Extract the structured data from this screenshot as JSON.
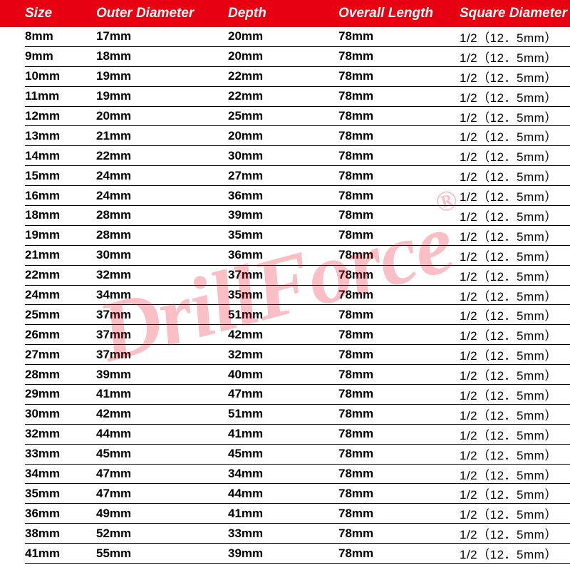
{
  "watermark": {
    "text": "DrillForce",
    "reg": "®",
    "color": "rgba(230,0,18,0.25)"
  },
  "table": {
    "header_bg": "#e60012",
    "header_fg": "#ffffff",
    "columns": [
      {
        "key": "size",
        "label": "Size"
      },
      {
        "key": "outer",
        "label": "Outer Diameter"
      },
      {
        "key": "depth",
        "label": "Depth"
      },
      {
        "key": "length",
        "label": "Overall Length"
      },
      {
        "key": "square",
        "label": "Square Diameter"
      }
    ],
    "rows": [
      {
        "size": "8mm",
        "outer": "17mm",
        "depth": "20mm",
        "length": "78mm",
        "square": "1/2（12．5mm）"
      },
      {
        "size": "9mm",
        "outer": "18mm",
        "depth": "20mm",
        "length": "78mm",
        "square": "1/2（12．5mm）"
      },
      {
        "size": "10mm",
        "outer": "19mm",
        "depth": "22mm",
        "length": "78mm",
        "square": "1/2（12．5mm）"
      },
      {
        "size": "11mm",
        "outer": "19mm",
        "depth": "22mm",
        "length": "78mm",
        "square": "1/2（12．5mm）"
      },
      {
        "size": "12mm",
        "outer": "20mm",
        "depth": "25mm",
        "length": "78mm",
        "square": "1/2（12．5mm）"
      },
      {
        "size": "13mm",
        "outer": "21mm",
        "depth": "20mm",
        "length": "78mm",
        "square": "1/2（12．5mm）"
      },
      {
        "size": "14mm",
        "outer": "22mm",
        "depth": "30mm",
        "length": "78mm",
        "square": "1/2（12．5mm）"
      },
      {
        "size": "15mm",
        "outer": "24mm",
        "depth": "27mm",
        "length": "78mm",
        "square": "1/2（12．5mm）"
      },
      {
        "size": "16mm",
        "outer": "24mm",
        "depth": "36mm",
        "length": "78mm",
        "square": "1/2（12．5mm）"
      },
      {
        "size": "18mm",
        "outer": "28mm",
        "depth": "39mm",
        "length": "78mm",
        "square": "1/2（12．5mm）"
      },
      {
        "size": "19mm",
        "outer": "28mm",
        "depth": "35mm",
        "length": "78mm",
        "square": "1/2（12．5mm）"
      },
      {
        "size": "21mm",
        "outer": "30mm",
        "depth": "36mm",
        "length": "78mm",
        "square": "1/2（12．5mm）"
      },
      {
        "size": "22mm",
        "outer": "32mm",
        "depth": "37mm",
        "length": "78mm",
        "square": "1/2（12．5mm）"
      },
      {
        "size": "24mm",
        "outer": "34mm",
        "depth": "35mm",
        "length": "78mm",
        "square": "1/2（12．5mm）"
      },
      {
        "size": "25mm",
        "outer": "37mm",
        "depth": "51mm",
        "length": "78mm",
        "square": "1/2（12．5mm）"
      },
      {
        "size": "26mm",
        "outer": "37mm",
        "depth": "42mm",
        "length": "78mm",
        "square": "1/2（12．5mm）"
      },
      {
        "size": "27mm",
        "outer": "37mm",
        "depth": "32mm",
        "length": "78mm",
        "square": "1/2（12．5mm）"
      },
      {
        "size": "28mm",
        "outer": "39mm",
        "depth": "40mm",
        "length": "78mm",
        "square": "1/2（12．5mm）"
      },
      {
        "size": "29mm",
        "outer": "41mm",
        "depth": "47mm",
        "length": "78mm",
        "square": "1/2（12．5mm）"
      },
      {
        "size": "30mm",
        "outer": "42mm",
        "depth": "51mm",
        "length": "78mm",
        "square": "1/2（12．5mm）"
      },
      {
        "size": "32mm",
        "outer": "44mm",
        "depth": "41mm",
        "length": "78mm",
        "square": "1/2（12．5mm）"
      },
      {
        "size": "33mm",
        "outer": "45mm",
        "depth": "45mm",
        "length": "78mm",
        "square": "1/2（12．5mm）"
      },
      {
        "size": "34mm",
        "outer": "47mm",
        "depth": "34mm",
        "length": "78mm",
        "square": "1/2（12．5mm）"
      },
      {
        "size": "35mm",
        "outer": "47mm",
        "depth": "44mm",
        "length": "78mm",
        "square": "1/2（12．5mm）"
      },
      {
        "size": "36mm",
        "outer": "49mm",
        "depth": "41mm",
        "length": "78mm",
        "square": "1/2（12．5mm）"
      },
      {
        "size": "38mm",
        "outer": "52mm",
        "depth": "33mm",
        "length": "78mm",
        "square": "1/2（12．5mm）"
      },
      {
        "size": "41mm",
        "outer": "55mm",
        "depth": "39mm",
        "length": "78mm",
        "square": "1/2（12．5mm）"
      }
    ]
  }
}
